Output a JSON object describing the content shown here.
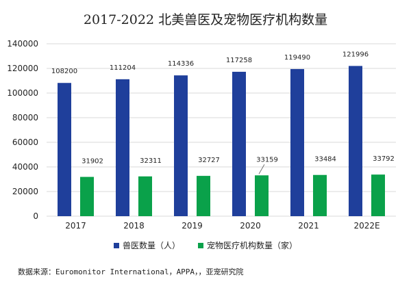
{
  "chart_data": {
    "type": "bar",
    "title": "2017-2022 北美兽医及宠物医疗机构数量",
    "categories": [
      "2017",
      "2018",
      "2019",
      "2020",
      "2021",
      "2022E"
    ],
    "series": [
      {
        "name": "兽医数量（人）",
        "color": "#1f3f9b",
        "values": [
          108200,
          111204,
          114336,
          117258,
          119490,
          121996
        ]
      },
      {
        "name": "宠物医疗机构数量（家）",
        "color": "#0aa14a",
        "values": [
          31902,
          32311,
          32727,
          33159,
          33484,
          33792
        ]
      }
    ],
    "ylim": [
      0,
      140000
    ],
    "yticks": [
      0,
      20000,
      40000,
      60000,
      80000,
      100000,
      120000,
      140000
    ],
    "grid": true,
    "legend_position": "bottom"
  },
  "source": "数据来源：Euromonitor International，APPA，，亚宠研究院"
}
